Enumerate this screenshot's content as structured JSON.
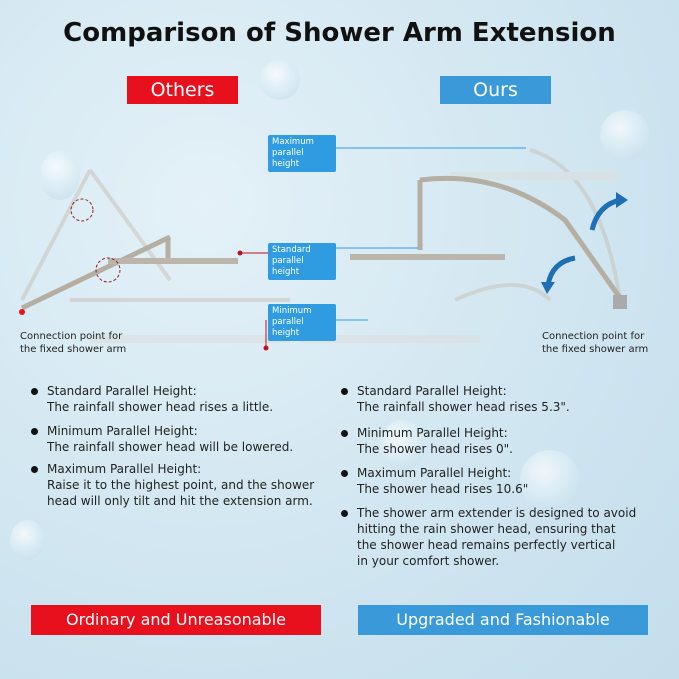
{
  "title": "Comparison of Shower Arm Extension",
  "colors": {
    "others": "#e8101c",
    "ours": "#3a9ad9",
    "label": "#2f9be0"
  },
  "others": {
    "tag": "Others",
    "connection": [
      "Connection point for",
      "the fixed shower arm"
    ],
    "bullets": [
      {
        "head": "Standard Parallel Height:",
        "body": [
          "The rainfall shower head rises a little."
        ]
      },
      {
        "head": "Minimum Parallel Height:",
        "body": [
          "The rainfall shower head will be lowered."
        ]
      },
      {
        "head": "Maximum Parallel Height:",
        "body": [
          "Raise it to the highest point, and the shower",
          "head will only tilt and hit the extension arm."
        ]
      }
    ],
    "footer": "Ordinary and Unreasonable"
  },
  "ours": {
    "tag": "Ours",
    "connection": [
      "Connection point for",
      "the fixed shower arm"
    ],
    "bullets": [
      {
        "head": "Standard Parallel Height:",
        "body": [
          "The rainfall shower head rises 5.3\"."
        ]
      },
      {
        "head": "Minimum Parallel Height:",
        "body": [
          "The shower head rises 0\"."
        ]
      },
      {
        "head": "Maximum Parallel Height:",
        "body": [
          "The shower head rises 10.6\""
        ]
      },
      {
        "head": "The shower arm extender is designed to avoid",
        "body": [
          "hitting the rain shower head, ensuring that",
          "the shower head remains perfectly vertical",
          "in your comfort shower."
        ]
      }
    ],
    "footer": "Upgraded and Fashionable"
  },
  "labels": {
    "max": [
      "Maximum",
      "parallel height"
    ],
    "standard": [
      "Standard",
      "parallel height"
    ],
    "min": [
      "Minimum",
      "parallel height"
    ]
  }
}
